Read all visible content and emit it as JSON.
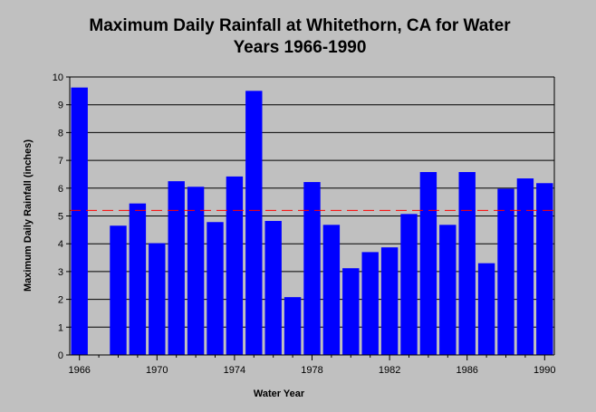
{
  "chart_data": {
    "type": "bar",
    "title_line1": "Maximum Daily Rainfall at Whitethorn, CA for Water",
    "title_line2": "Years 1966-1990",
    "xlabel": "Water Year",
    "ylabel": "Maximum Daily Rainfall (inches)",
    "categories": [
      1966,
      1967,
      1968,
      1969,
      1970,
      1971,
      1972,
      1973,
      1974,
      1975,
      1976,
      1977,
      1978,
      1979,
      1980,
      1981,
      1982,
      1983,
      1984,
      1985,
      1986,
      1987,
      1988,
      1989,
      1990
    ],
    "values": [
      9.62,
      null,
      4.65,
      5.45,
      4.02,
      6.25,
      6.05,
      4.78,
      6.42,
      9.5,
      4.82,
      2.08,
      6.22,
      4.68,
      3.12,
      3.7,
      3.87,
      5.07,
      6.58,
      4.68,
      6.58,
      3.3,
      5.98,
      6.35,
      6.18
    ],
    "mean_line": 5.2,
    "ylim": [
      0,
      10
    ],
    "yticks": [
      0,
      1,
      2,
      3,
      4,
      5,
      6,
      7,
      8,
      9,
      10
    ],
    "xticks": [
      1966,
      1970,
      1974,
      1978,
      1982,
      1986,
      1990
    ],
    "grid": true,
    "colors": {
      "bar": "#0000ff",
      "mean_line": "#ff0000",
      "plot_background": "#c0c0c0",
      "grid": "#000000"
    }
  }
}
